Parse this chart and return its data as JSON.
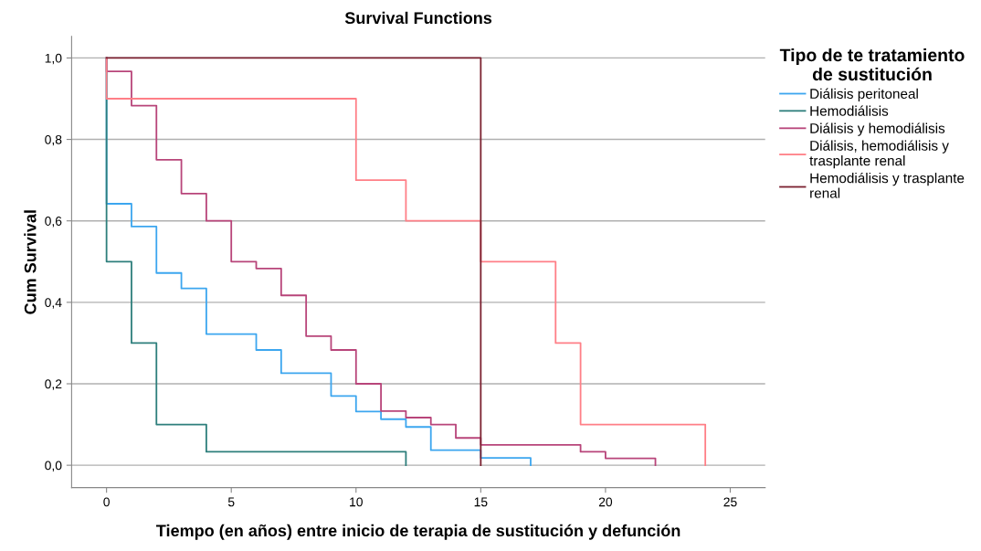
{
  "chart_data": {
    "type": "step",
    "title": "Survival Functions",
    "xlabel": "Tiempo (en años) entre inicio de terapia de sustitución y defunción",
    "ylabel": "Cum Survival",
    "legend_title": "Tipo de te tratamiento de sustitución",
    "legend": "right",
    "grid": "y",
    "marker": "none",
    "line_style": "solid",
    "xlim": [
      -1.4,
      26.4
    ],
    "xticks": [
      0,
      5,
      10,
      15,
      20,
      25
    ],
    "ylim": [
      -0.055,
      1.053
    ],
    "yticks": [
      {
        "value": 0,
        "label": "0,0"
      },
      {
        "value": 0.2,
        "label": "0,2"
      },
      {
        "value": 0.4,
        "label": "0,4"
      },
      {
        "value": 0.6,
        "label": "0,6"
      },
      {
        "value": 0.8,
        "label": "0,8"
      },
      {
        "value": 1.0,
        "label": "1,0"
      }
    ],
    "series": [
      {
        "name": "Diálisis peritoneal",
        "color": "#3ca6ef",
        "x": [
          0,
          0,
          1,
          2,
          3,
          4,
          6,
          7,
          9,
          10,
          11,
          12,
          13,
          15,
          17
        ],
        "values": [
          1.0,
          0.642,
          0.586,
          0.472,
          0.434,
          0.322,
          0.283,
          0.226,
          0.17,
          0.132,
          0.113,
          0.094,
          0.037,
          0.018,
          0
        ]
      },
      {
        "name": "Hemodiálisis",
        "color": "#2e7f7c",
        "x": [
          0,
          0,
          1,
          2,
          4,
          12
        ],
        "values": [
          1.0,
          0.5,
          0.3,
          0.1,
          0.033,
          0
        ]
      },
      {
        "name": "Diálisis y hemodiálisis",
        "color": "#b8457a",
        "x": [
          0,
          0,
          1,
          2,
          3,
          4,
          5,
          6,
          7,
          8,
          9,
          10,
          11,
          12,
          13,
          14,
          15,
          19,
          20,
          22
        ],
        "values": [
          1.0,
          0.967,
          0.883,
          0.75,
          0.667,
          0.6,
          0.5,
          0.483,
          0.417,
          0.317,
          0.283,
          0.2,
          0.133,
          0.117,
          0.1,
          0.067,
          0.05,
          0.033,
          0.017,
          0
        ]
      },
      {
        "name": "Diálisis, hemodiálisis y trasplante renal",
        "color": "#ff7f87",
        "x": [
          0,
          0,
          10,
          12,
          15,
          18,
          19,
          24
        ],
        "values": [
          1.0,
          0.9,
          0.7,
          0.6,
          0.5,
          0.3,
          0.1,
          0
        ]
      },
      {
        "name": "Hemodiálisis y trasplante renal",
        "color": "#7b2130",
        "x": [
          0,
          15
        ],
        "values": [
          1.0,
          0
        ]
      }
    ]
  }
}
